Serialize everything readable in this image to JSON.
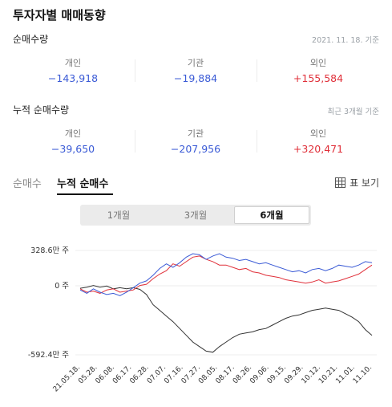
{
  "header": {
    "title": "투자자별 매매동향"
  },
  "net": {
    "title": "순매수량",
    "note": "2021. 11. 18. 기준",
    "items": [
      {
        "label": "개인",
        "value": "−143,918"
      },
      {
        "label": "기관",
        "value": "−19,884"
      },
      {
        "label": "외인",
        "value": "+155,584"
      }
    ]
  },
  "cum": {
    "title": "누적 순매수량",
    "note": "최근 3개월 기준",
    "items": [
      {
        "label": "개인",
        "value": "−39,650"
      },
      {
        "label": "기관",
        "value": "−207,956"
      },
      {
        "label": "외인",
        "value": "+320,471"
      }
    ]
  },
  "tabs": [
    {
      "label": "순매수"
    },
    {
      "label": "누적 순매수"
    }
  ],
  "table_view_label": "표 보기",
  "periods": [
    {
      "label": "1개월"
    },
    {
      "label": "3개월"
    },
    {
      "label": "6개월"
    }
  ],
  "colors": {
    "negative": "#3b5bd6",
    "positive": "#e0303a",
    "individual": "#333333",
    "institution": "#e0303a",
    "foreign": "#3b5bd6"
  },
  "chart_data": {
    "type": "line",
    "ytick_labels": [
      "328.6만 주",
      "0 주",
      "-592.4만 주"
    ],
    "ylim": [
      -592.4,
      328.6
    ],
    "x_labels": [
      "21.05.18.",
      "05.28.",
      "06.08.",
      "06.17.",
      "06.28.",
      "07.07.",
      "07.16.",
      "07.27.",
      "08.05.",
      "08.17.",
      "08.26.",
      "09.06.",
      "09.15.",
      "09.29.",
      "10.12.",
      "10.21.",
      "11.01.",
      "11.10."
    ],
    "series": [
      {
        "color": "#333333",
        "values": [
          -5,
          5,
          20,
          5,
          15,
          -10,
          0,
          -10,
          0,
          -15,
          -60,
          -150,
          -200,
          -250,
          -300,
          -360,
          -420,
          -480,
          -520,
          -560,
          -570,
          -520,
          -480,
          -440,
          -410,
          -400,
          -390,
          -370,
          -360,
          -330,
          -300,
          -270,
          -250,
          -240,
          -220,
          -200,
          -190,
          -180,
          -190,
          -200,
          -230,
          -260,
          -300,
          -370,
          -420
        ]
      },
      {
        "color": "#e0303a",
        "values": [
          -10,
          -40,
          -30,
          -50,
          -20,
          -10,
          -40,
          -30,
          -20,
          20,
          30,
          80,
          120,
          150,
          210,
          190,
          230,
          270,
          280,
          250,
          230,
          200,
          200,
          180,
          160,
          170,
          140,
          130,
          110,
          100,
          90,
          70,
          60,
          50,
          40,
          50,
          70,
          40,
          50,
          60,
          80,
          100,
          120,
          160,
          200
        ]
      },
      {
        "color": "#3b5bd6",
        "values": [
          -20,
          -50,
          -10,
          -40,
          -60,
          -50,
          -70,
          -40,
          0,
          40,
          60,
          110,
          170,
          210,
          180,
          220,
          270,
          300,
          290,
          250,
          280,
          300,
          270,
          260,
          240,
          250,
          230,
          210,
          220,
          200,
          180,
          160,
          140,
          150,
          130,
          160,
          170,
          150,
          170,
          200,
          190,
          180,
          200,
          230,
          220
        ]
      }
    ]
  }
}
